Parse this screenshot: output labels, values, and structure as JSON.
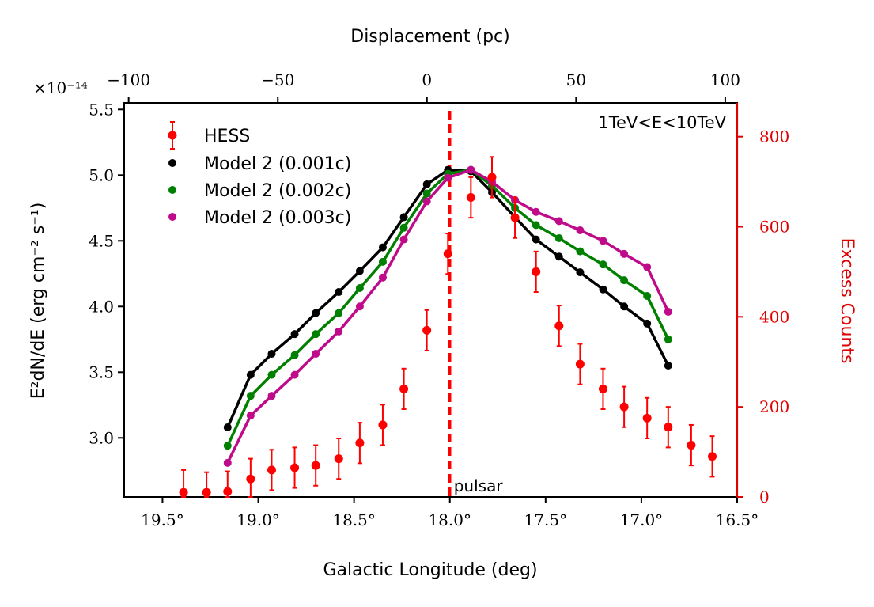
{
  "chart_data": {
    "type": "line",
    "title": "",
    "annotation": "1TeV<E<10TeV",
    "pulsar_label": "pulsar",
    "pulsar_longitude": 18.0,
    "xlabel": "Galactic Longitude (deg)",
    "xlim": [
      19.7,
      16.5
    ],
    "x_ticks": [
      19.5,
      19.0,
      18.5,
      18.0,
      17.5,
      17.0,
      16.5
    ],
    "x_tick_labels": [
      "19.5°",
      "19.0°",
      "18.5°",
      "18.0°",
      "17.5°",
      "17.0°",
      "16.5°"
    ],
    "ylabel_left": "E²dN/dE (erg cm⁻² s⁻¹)",
    "y_multiplier": "×10⁻¹⁴",
    "ylim_left": [
      2.55,
      5.55
    ],
    "y_left_ticks": [
      3.0,
      3.5,
      4.0,
      4.5,
      5.0,
      5.5
    ],
    "y_left_tick_labels": [
      "3.0",
      "3.5",
      "4.0",
      "4.5",
      "5.0",
      "5.5"
    ],
    "ylabel_right": "Excess Counts",
    "ylim_right": [
      0,
      875
    ],
    "y_right_ticks": [
      0,
      200,
      400,
      600,
      800
    ],
    "y_right_tick_labels": [
      "0",
      "200",
      "400",
      "600",
      "800"
    ],
    "top_xlabel": "Displacement (pc)",
    "top_xlim": [
      -101.5,
      104
    ],
    "top_x_ticks": [
      -100,
      -50,
      0,
      50,
      100
    ],
    "top_x_tick_labels": [
      "−100",
      "−50",
      "0",
      "50",
      "100"
    ],
    "colors": {
      "hess": "#ff0000",
      "model_0001c": "#000000",
      "model_0002c": "#008000",
      "model_0003c": "#bf0a8a",
      "right_axis": "#e00000"
    },
    "hess": {
      "name": "HESS",
      "x": [
        19.39,
        19.27,
        19.16,
        19.04,
        18.93,
        18.81,
        18.7,
        18.58,
        18.47,
        18.35,
        18.24,
        18.12,
        18.01,
        17.89,
        17.78,
        17.66,
        17.55,
        17.43,
        17.32,
        17.2,
        17.09,
        16.97,
        16.86,
        16.74,
        16.63
      ],
      "y": [
        10,
        10,
        12,
        40,
        60,
        65,
        70,
        85,
        120,
        160,
        240,
        370,
        540,
        665,
        710,
        620,
        500,
        380,
        295,
        240,
        200,
        175,
        155,
        115,
        90
      ],
      "yerr": [
        50,
        45,
        45,
        45,
        45,
        45,
        45,
        45,
        45,
        45,
        45,
        45,
        45,
        45,
        45,
        45,
        45,
        45,
        45,
        45,
        45,
        45,
        45,
        45,
        45
      ]
    },
    "series": [
      {
        "name": "Model 2 (0.001c)",
        "x": [
          19.16,
          19.04,
          18.93,
          18.81,
          18.7,
          18.58,
          18.47,
          18.35,
          18.24,
          18.12,
          18.01,
          17.89,
          17.78,
          17.66,
          17.55,
          17.43,
          17.32,
          17.2,
          17.09,
          16.97,
          16.86
        ],
        "y": [
          3.08,
          3.48,
          3.64,
          3.79,
          3.95,
          4.11,
          4.27,
          4.45,
          4.68,
          4.93,
          5.04,
          5.03,
          4.87,
          4.68,
          4.51,
          4.38,
          4.26,
          4.13,
          4.0,
          3.87,
          3.55
        ]
      },
      {
        "name": "Model 2 (0.002c)",
        "x": [
          19.16,
          19.04,
          18.93,
          18.81,
          18.7,
          18.58,
          18.47,
          18.35,
          18.24,
          18.12,
          18.01,
          17.89,
          17.78,
          17.66,
          17.55,
          17.43,
          17.32,
          17.2,
          17.09,
          16.97,
          16.86
        ],
        "y": [
          2.94,
          3.32,
          3.48,
          3.63,
          3.79,
          3.95,
          4.14,
          4.34,
          4.6,
          4.86,
          5.01,
          5.04,
          4.92,
          4.75,
          4.62,
          4.52,
          4.42,
          4.32,
          4.2,
          4.08,
          3.75
        ]
      },
      {
        "name": "Model 2 (0.003c)",
        "x": [
          19.16,
          19.04,
          18.93,
          18.81,
          18.7,
          18.58,
          18.47,
          18.35,
          18.24,
          18.12,
          18.01,
          17.89,
          17.78,
          17.66,
          17.55,
          17.43,
          17.32,
          17.2,
          17.09,
          16.97,
          16.86
        ],
        "y": [
          2.81,
          3.17,
          3.32,
          3.48,
          3.64,
          3.81,
          4.0,
          4.22,
          4.51,
          4.8,
          4.98,
          5.04,
          4.95,
          4.81,
          4.72,
          4.65,
          4.58,
          4.5,
          4.4,
          4.3,
          3.96
        ]
      }
    ]
  }
}
